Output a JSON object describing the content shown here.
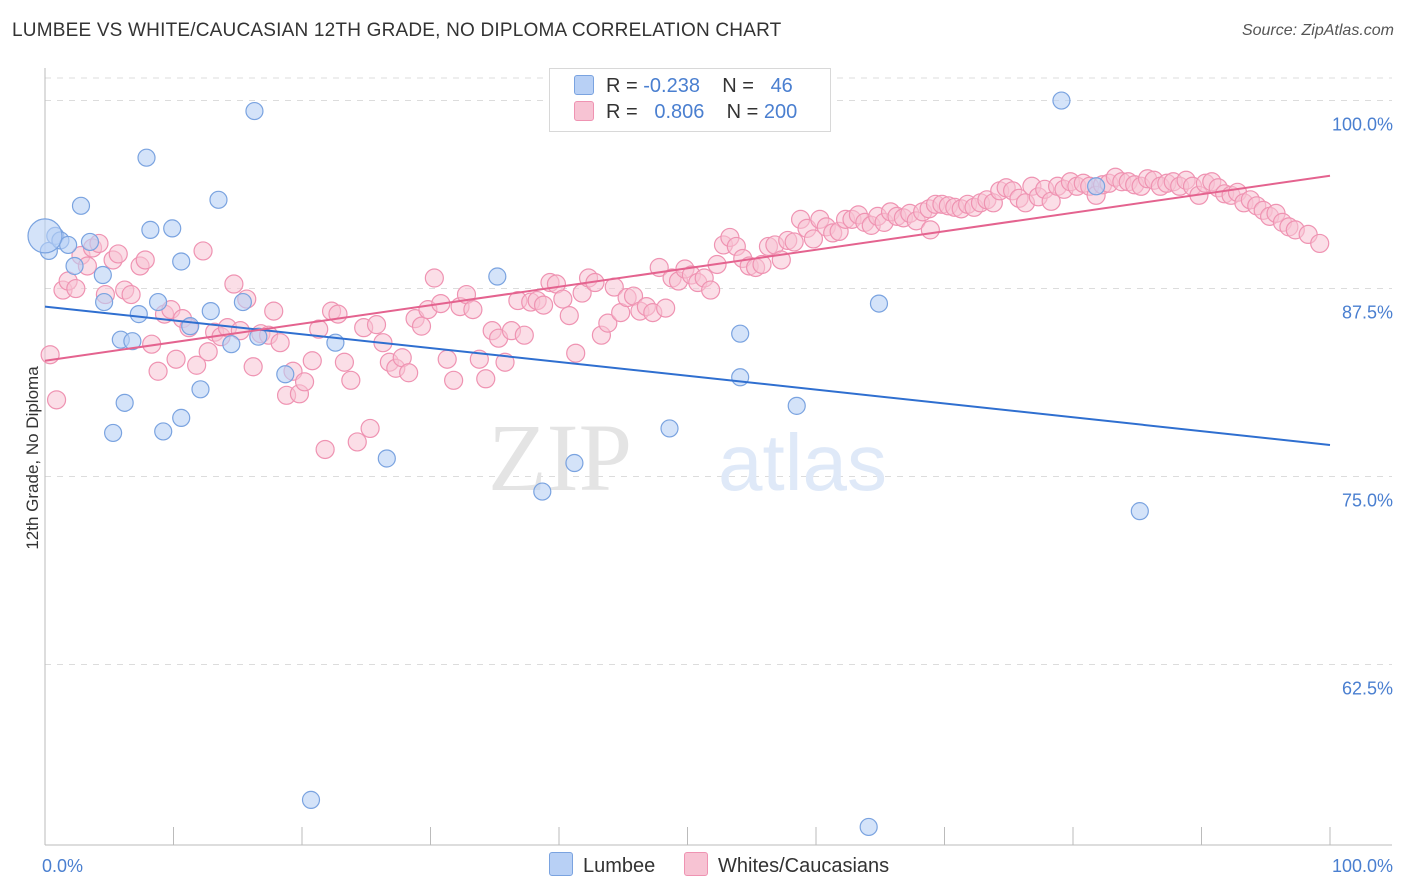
{
  "title": "LUMBEE VS WHITE/CAUCASIAN 12TH GRADE, NO DIPLOMA CORRELATION CHART",
  "source": "Source: ZipAtlas.com",
  "watermark": {
    "zip": "ZIP",
    "atlas": "atlas"
  },
  "legend": {
    "lumbee": {
      "r_label": "R =",
      "r_value": "-0.238",
      "n_label": "N =",
      "n_value": "46"
    },
    "whites": {
      "r_label": "R =",
      "r_value": "0.806",
      "n_label": "N =",
      "n_value": "200"
    }
  },
  "bottom_legend": {
    "lumbee": "Lumbee",
    "whites": "Whites/Caucasians"
  },
  "colors": {
    "lumbee_fill": "#b8d0f5",
    "lumbee_stroke": "#7aa3e0",
    "lumbee_line": "#2f6fd0",
    "whites_fill": "#f7c3d3",
    "whites_stroke": "#ef93b2",
    "whites_line": "#e4638f",
    "tick_text": "#4a7fd0",
    "grid": "#dcdcdc"
  },
  "chart_data": {
    "type": "scatter",
    "xlabel": "",
    "ylabel": "12th Grade, No Diploma",
    "xlim": [
      0,
      100
    ],
    "ylim": [
      50.5,
      101.5
    ],
    "x_tick_labels": [
      {
        "v": 0,
        "label": "0.0%"
      },
      {
        "v": 100,
        "label": "100.0%"
      }
    ],
    "y_ticks": [
      {
        "v": 62.5,
        "label": "62.5%"
      },
      {
        "v": 75.0,
        "label": "75.0%"
      },
      {
        "v": 87.5,
        "label": "87.5%"
      },
      {
        "v": 100.0,
        "label": "100.0%"
      }
    ],
    "grid": true,
    "legend_position": "top-center",
    "series": [
      {
        "name": "Lumbee",
        "r": -0.238,
        "n": 46,
        "trend": [
          [
            0,
            86.3
          ],
          [
            100,
            77.1
          ]
        ],
        "points": [
          [
            0.3,
            90.0
          ],
          [
            0.8,
            91.0
          ],
          [
            1.2,
            90.7
          ],
          [
            1.8,
            90.4
          ],
          [
            2.3,
            89.0
          ],
          [
            2.8,
            93.0
          ],
          [
            3.5,
            90.6
          ],
          [
            4.5,
            88.4
          ],
          [
            4.6,
            86.6
          ],
          [
            5.3,
            77.9
          ],
          [
            5.9,
            84.1
          ],
          [
            6.2,
            79.9
          ],
          [
            6.8,
            84.0
          ],
          [
            7.3,
            85.8
          ],
          [
            7.9,
            96.2
          ],
          [
            8.2,
            91.4
          ],
          [
            8.8,
            86.6
          ],
          [
            9.2,
            78.0
          ],
          [
            9.9,
            91.5
          ],
          [
            10.6,
            89.3
          ],
          [
            10.6,
            78.9
          ],
          [
            11.3,
            85.0
          ],
          [
            12.1,
            80.8
          ],
          [
            12.9,
            86.0
          ],
          [
            13.5,
            93.4
          ],
          [
            14.5,
            83.8
          ],
          [
            15.4,
            86.6
          ],
          [
            16.3,
            99.3
          ],
          [
            16.6,
            84.3
          ],
          [
            18.7,
            81.8
          ],
          [
            20.7,
            53.5
          ],
          [
            22.6,
            83.9
          ],
          [
            26.6,
            76.2
          ],
          [
            35.2,
            88.3
          ],
          [
            38.7,
            74.0
          ],
          [
            41.2,
            75.9
          ],
          [
            48.6,
            78.2
          ],
          [
            54.1,
            84.5
          ],
          [
            54.1,
            81.6
          ],
          [
            58.5,
            79.7
          ],
          [
            64.1,
            51.7
          ],
          [
            64.9,
            86.5
          ],
          [
            79.1,
            100.0
          ],
          [
            81.8,
            94.3
          ],
          [
            85.2,
            72.7
          ],
          [
            0.0,
            91.0
          ]
        ]
      },
      {
        "name": "Whites/Caucasians",
        "r": 0.806,
        "n": 200,
        "trend": [
          [
            0,
            82.7
          ],
          [
            100,
            95.0
          ]
        ],
        "points": [
          [
            0.4,
            83.1
          ],
          [
            0.9,
            80.1
          ],
          [
            1.4,
            87.4
          ],
          [
            1.8,
            88.0
          ],
          [
            2.4,
            87.5
          ],
          [
            2.8,
            89.7
          ],
          [
            3.3,
            89.0
          ],
          [
            3.7,
            90.2
          ],
          [
            4.2,
            90.5
          ],
          [
            4.7,
            87.1
          ],
          [
            5.3,
            89.4
          ],
          [
            5.7,
            89.8
          ],
          [
            6.2,
            87.4
          ],
          [
            6.7,
            87.1
          ],
          [
            7.4,
            89.0
          ],
          [
            7.8,
            89.4
          ],
          [
            8.3,
            83.8
          ],
          [
            8.8,
            82.0
          ],
          [
            9.3,
            85.8
          ],
          [
            9.8,
            86.1
          ],
          [
            10.2,
            82.8
          ],
          [
            10.7,
            85.5
          ],
          [
            11.2,
            84.9
          ],
          [
            11.8,
            82.4
          ],
          [
            12.3,
            90.0
          ],
          [
            12.7,
            83.3
          ],
          [
            13.2,
            84.6
          ],
          [
            13.7,
            84.3
          ],
          [
            14.2,
            84.9
          ],
          [
            14.7,
            87.8
          ],
          [
            15.2,
            84.7
          ],
          [
            15.7,
            86.8
          ],
          [
            16.2,
            82.3
          ],
          [
            16.8,
            84.5
          ],
          [
            17.4,
            84.4
          ],
          [
            17.8,
            86.0
          ],
          [
            18.3,
            83.9
          ],
          [
            18.8,
            80.4
          ],
          [
            19.3,
            82.0
          ],
          [
            19.8,
            80.5
          ],
          [
            20.2,
            81.3
          ],
          [
            20.8,
            82.7
          ],
          [
            21.3,
            84.8
          ],
          [
            21.8,
            76.8
          ],
          [
            22.3,
            86.0
          ],
          [
            22.8,
            85.8
          ],
          [
            23.3,
            82.6
          ],
          [
            23.8,
            81.4
          ],
          [
            24.3,
            77.3
          ],
          [
            24.8,
            84.9
          ],
          [
            25.3,
            78.2
          ],
          [
            25.8,
            85.1
          ],
          [
            26.3,
            83.9
          ],
          [
            26.8,
            82.6
          ],
          [
            27.3,
            82.2
          ],
          [
            27.8,
            82.9
          ],
          [
            28.3,
            81.9
          ],
          [
            28.8,
            85.5
          ],
          [
            29.3,
            85.0
          ],
          [
            29.8,
            86.1
          ],
          [
            30.3,
            88.2
          ],
          [
            30.8,
            86.5
          ],
          [
            31.3,
            82.8
          ],
          [
            31.8,
            81.4
          ],
          [
            32.3,
            86.3
          ],
          [
            32.8,
            87.1
          ],
          [
            33.3,
            86.1
          ],
          [
            33.8,
            82.8
          ],
          [
            34.3,
            81.5
          ],
          [
            34.8,
            84.7
          ],
          [
            35.3,
            84.2
          ],
          [
            35.8,
            82.6
          ],
          [
            36.3,
            84.7
          ],
          [
            36.8,
            86.7
          ],
          [
            37.3,
            84.4
          ],
          [
            37.8,
            86.6
          ],
          [
            38.3,
            86.7
          ],
          [
            38.8,
            86.4
          ],
          [
            39.3,
            87.9
          ],
          [
            39.8,
            87.8
          ],
          [
            40.3,
            86.8
          ],
          [
            40.8,
            85.7
          ],
          [
            41.3,
            83.2
          ],
          [
            41.8,
            87.2
          ],
          [
            42.3,
            88.2
          ],
          [
            42.8,
            87.9
          ],
          [
            43.3,
            84.4
          ],
          [
            43.8,
            85.2
          ],
          [
            44.3,
            87.6
          ],
          [
            44.8,
            85.9
          ],
          [
            45.3,
            86.9
          ],
          [
            45.8,
            87.0
          ],
          [
            46.3,
            86.0
          ],
          [
            46.8,
            86.3
          ],
          [
            47.3,
            85.9
          ],
          [
            47.8,
            88.9
          ],
          [
            48.3,
            86.2
          ],
          [
            48.8,
            88.2
          ],
          [
            49.3,
            88.0
          ],
          [
            49.8,
            88.8
          ],
          [
            50.3,
            88.4
          ],
          [
            50.8,
            87.9
          ],
          [
            51.3,
            88.2
          ],
          [
            51.8,
            87.4
          ],
          [
            52.3,
            89.1
          ],
          [
            52.8,
            90.4
          ],
          [
            53.3,
            90.9
          ],
          [
            53.8,
            90.3
          ],
          [
            54.3,
            89.5
          ],
          [
            54.8,
            89.0
          ],
          [
            55.3,
            88.9
          ],
          [
            55.8,
            89.1
          ],
          [
            56.3,
            90.3
          ],
          [
            56.8,
            90.4
          ],
          [
            57.3,
            89.4
          ],
          [
            57.8,
            90.7
          ],
          [
            58.3,
            90.6
          ],
          [
            58.8,
            92.1
          ],
          [
            59.3,
            91.5
          ],
          [
            59.8,
            90.8
          ],
          [
            60.3,
            92.1
          ],
          [
            60.8,
            91.6
          ],
          [
            61.3,
            91.2
          ],
          [
            61.8,
            91.3
          ],
          [
            62.3,
            92.1
          ],
          [
            62.8,
            92.1
          ],
          [
            63.3,
            92.4
          ],
          [
            63.8,
            91.9
          ],
          [
            64.3,
            91.7
          ],
          [
            64.8,
            92.3
          ],
          [
            65.3,
            91.9
          ],
          [
            65.8,
            92.6
          ],
          [
            66.3,
            92.3
          ],
          [
            66.8,
            92.2
          ],
          [
            67.3,
            92.5
          ],
          [
            67.8,
            92.0
          ],
          [
            68.3,
            92.6
          ],
          [
            68.8,
            92.8
          ],
          [
            69.3,
            93.1
          ],
          [
            69.8,
            93.1
          ],
          [
            70.3,
            93.0
          ],
          [
            70.8,
            92.9
          ],
          [
            71.3,
            92.8
          ],
          [
            71.8,
            93.1
          ],
          [
            72.3,
            92.9
          ],
          [
            72.8,
            93.2
          ],
          [
            73.3,
            93.4
          ],
          [
            73.8,
            93.2
          ],
          [
            74.3,
            94.0
          ],
          [
            74.8,
            94.2
          ],
          [
            75.3,
            94.0
          ],
          [
            75.8,
            93.5
          ],
          [
            76.3,
            93.2
          ],
          [
            76.8,
            94.3
          ],
          [
            77.3,
            93.6
          ],
          [
            77.8,
            94.1
          ],
          [
            78.3,
            93.3
          ],
          [
            78.8,
            94.3
          ],
          [
            79.3,
            94.1
          ],
          [
            79.8,
            94.6
          ],
          [
            80.3,
            94.3
          ],
          [
            80.8,
            94.5
          ],
          [
            81.3,
            94.3
          ],
          [
            81.8,
            93.7
          ],
          [
            82.3,
            94.4
          ],
          [
            82.8,
            94.5
          ],
          [
            83.3,
            94.9
          ],
          [
            83.8,
            94.6
          ],
          [
            84.3,
            94.6
          ],
          [
            84.8,
            94.4
          ],
          [
            85.3,
            94.3
          ],
          [
            85.8,
            94.8
          ],
          [
            86.3,
            94.7
          ],
          [
            86.8,
            94.3
          ],
          [
            87.3,
            94.5
          ],
          [
            87.8,
            94.6
          ],
          [
            88.3,
            94.3
          ],
          [
            88.8,
            94.7
          ],
          [
            89.3,
            94.3
          ],
          [
            89.8,
            93.7
          ],
          [
            90.3,
            94.5
          ],
          [
            90.8,
            94.6
          ],
          [
            91.3,
            94.2
          ],
          [
            91.8,
            93.8
          ],
          [
            92.3,
            93.7
          ],
          [
            92.8,
            93.9
          ],
          [
            93.3,
            93.2
          ],
          [
            93.8,
            93.4
          ],
          [
            94.3,
            93.0
          ],
          [
            94.8,
            92.7
          ],
          [
            95.3,
            92.3
          ],
          [
            95.8,
            92.5
          ],
          [
            96.3,
            91.9
          ],
          [
            96.8,
            91.6
          ],
          [
            97.3,
            91.4
          ],
          [
            98.3,
            91.1
          ],
          [
            99.2,
            90.5
          ],
          [
            68.9,
            91.4
          ]
        ]
      }
    ]
  }
}
